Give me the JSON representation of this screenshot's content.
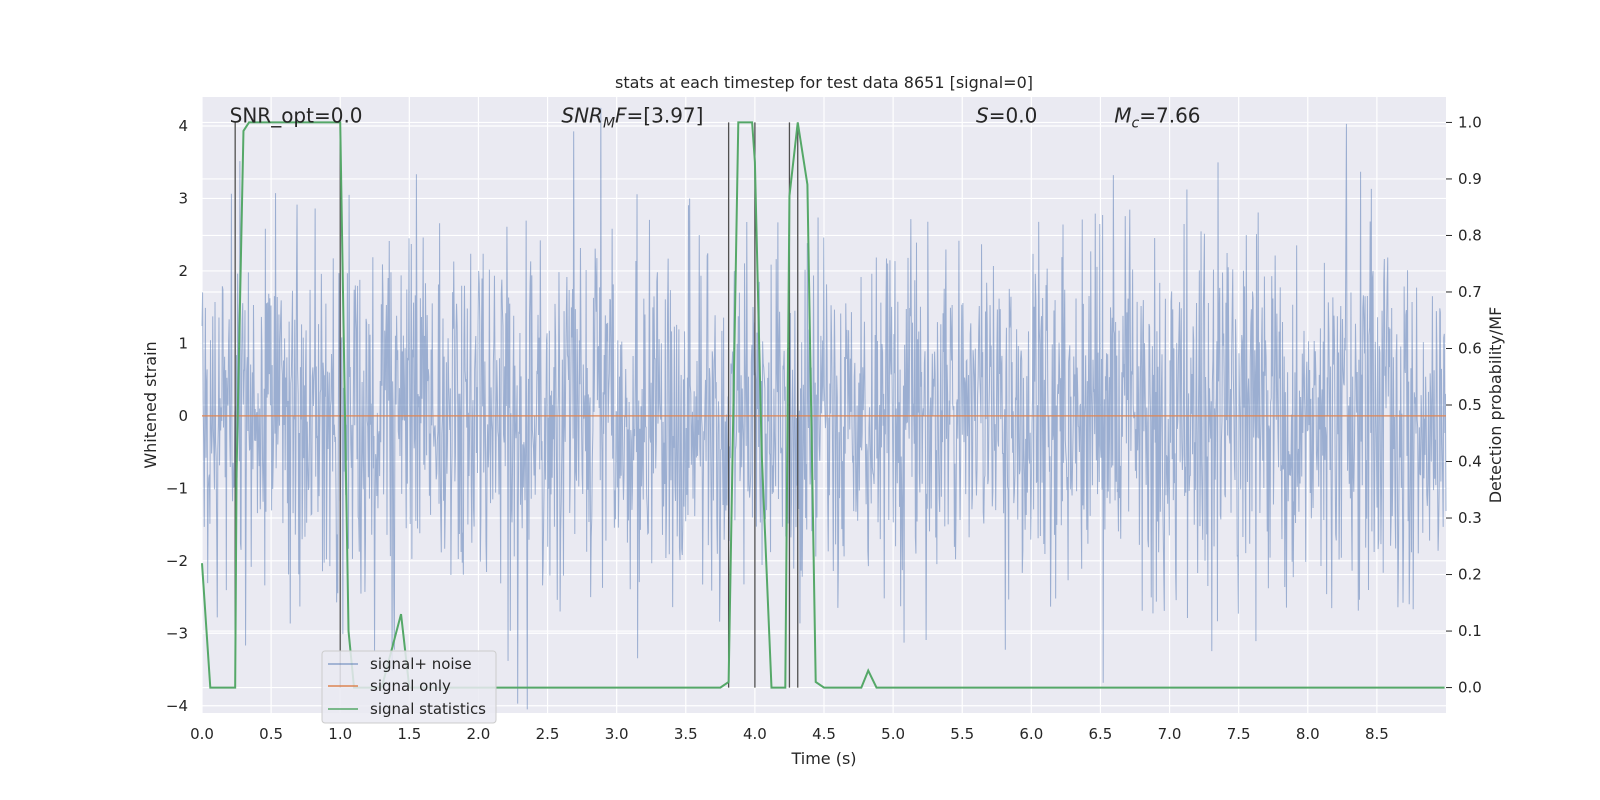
{
  "chart_data": {
    "type": "line",
    "title": "stats at each timestep for test data 8651 [signal=0]",
    "xlabel": "Time (s)",
    "ylabel": "Whitened strain",
    "y2label": "Detection probability/MF",
    "xlim": [
      0,
      9
    ],
    "ylim": [
      -4.1,
      4.4
    ],
    "y2lim": [
      -0.045,
      1.045
    ],
    "xticks": [
      0.0,
      0.5,
      1.0,
      1.5,
      2.0,
      2.5,
      3.0,
      3.5,
      4.0,
      4.5,
      5.0,
      5.5,
      6.0,
      6.5,
      7.0,
      7.5,
      8.0,
      8.5
    ],
    "xtick_labels": [
      "0.0",
      "0.5",
      "1.0",
      "1.5",
      "2.0",
      "2.5",
      "3.0",
      "3.5",
      "4.0",
      "4.5",
      "5.0",
      "5.5",
      "6.0",
      "6.5",
      "7.0",
      "7.5",
      "8.0",
      "8.5"
    ],
    "yticks": [
      -4,
      -3,
      -2,
      -1,
      0,
      1,
      2,
      3,
      4
    ],
    "ytick_labels": [
      "−4",
      "−3",
      "−2",
      "−1",
      "0",
      "1",
      "2",
      "3",
      "4"
    ],
    "y2ticks": [
      0.0,
      0.1,
      0.2,
      0.3,
      0.4,
      0.5,
      0.6,
      0.7,
      0.8,
      0.9,
      1.0
    ],
    "y2tick_labels": [
      "0.0",
      "0.1",
      "0.2",
      "0.3",
      "0.4",
      "0.5",
      "0.6",
      "0.7",
      "0.8",
      "0.9",
      "1.0"
    ],
    "grid": true,
    "legend_position": "lower-left",
    "annotations": [
      {
        "label": "SNR_opt=0.0",
        "x": 0.2,
        "y": 4.1
      },
      {
        "label_parts": [
          {
            "t": "SNR",
            "italic": true
          },
          {
            "t": "M",
            "italic": true,
            "sub": true
          },
          {
            "t": "F",
            "italic": true
          },
          {
            "t": "=[3.97]",
            "italic": false
          }
        ],
        "x": 2.6,
        "y": 4.1
      },
      {
        "label_parts": [
          {
            "t": "S",
            "italic": true
          },
          {
            "t": "=0.0",
            "italic": false
          }
        ],
        "x": 5.6,
        "y": 4.1
      },
      {
        "label_parts": [
          {
            "t": "M",
            "italic": true
          },
          {
            "t": "c",
            "italic": true,
            "sub": true
          },
          {
            "t": "=7.66",
            "italic": false
          }
        ],
        "x": 6.6,
        "y": 4.1
      }
    ],
    "vlines": [
      0.24,
      1.0,
      3.81,
      4.0,
      4.25,
      4.31
    ],
    "vline_range": [
      0.0,
      1.0
    ],
    "series": [
      {
        "name": "signal+ noise",
        "color": "#4c72b0",
        "note_shape": "dense white-noise whitened strain, amplitude mostly within about ±2, peaks to ±4",
        "seed": 8651,
        "n_samples": 2200,
        "std": 1.0
      },
      {
        "name": "signal only",
        "color": "#dd8452",
        "x": [
          0,
          9
        ],
        "y": [
          0,
          0
        ]
      },
      {
        "name": "signal statistics",
        "color": "#55a868",
        "axis": "right",
        "x": [
          0.0,
          0.06,
          0.24,
          0.25,
          0.3,
          0.34,
          0.5,
          1.0,
          1.06,
          1.1,
          1.2,
          1.3,
          1.44,
          1.5,
          1.6,
          1.7,
          2.0,
          2.5,
          3.0,
          3.5,
          3.75,
          3.81,
          3.88,
          3.98,
          4.0,
          4.05,
          4.12,
          4.17,
          4.22,
          4.25,
          4.31,
          4.38,
          4.44,
          4.5,
          4.6,
          4.7,
          4.77,
          4.82,
          4.88,
          4.95,
          5.5,
          6.0,
          6.5,
          7.0,
          7.5,
          8.0,
          8.5,
          8.99
        ],
        "y": [
          0.22,
          0.0,
          0.0,
          0.38,
          0.985,
          1.0,
          1.0,
          1.0,
          0.1,
          0.0,
          0.0,
          0.0,
          0.13,
          0.0,
          0.0,
          0.0,
          0.0,
          0.0,
          0.0,
          0.0,
          0.0,
          0.01,
          1.0,
          1.0,
          0.93,
          0.41,
          0.0,
          0.0,
          0.0,
          0.87,
          1.0,
          0.89,
          0.01,
          0.0,
          0.0,
          0.0,
          0.0,
          0.03,
          0.0,
          0.0,
          0.0,
          0.0,
          0.0,
          0.0,
          0.0,
          0.0,
          0.0,
          0.0
        ]
      }
    ],
    "colors": {
      "background": "#eaeaf2",
      "grid": "#ffffff",
      "vline": "#505050"
    }
  }
}
